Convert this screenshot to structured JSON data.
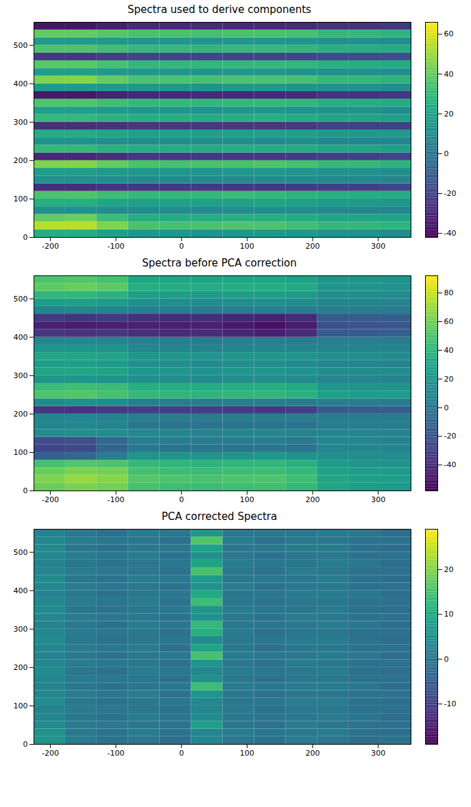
{
  "chart_data": [
    {
      "type": "heatmap",
      "title": "Spectra used to derive components",
      "xlim": [
        -225,
        350
      ],
      "ylim": [
        0,
        560
      ],
      "xticks": [
        -200,
        -100,
        0,
        100,
        200,
        300
      ],
      "yticks": [
        0,
        100,
        200,
        300,
        400,
        500
      ],
      "colorbar_range": [
        -42,
        66
      ],
      "colorbar_ticks": [
        -40,
        -20,
        0,
        20,
        40,
        60
      ],
      "x_edges": [
        -225,
        -177,
        -129,
        -81,
        -33,
        15,
        63,
        111,
        159,
        207,
        255,
        303,
        350
      ],
      "y_edges": [
        0,
        20,
        40,
        60,
        80,
        100,
        120,
        140,
        160,
        180,
        200,
        220,
        240,
        260,
        280,
        300,
        320,
        340,
        360,
        380,
        400,
        420,
        440,
        460,
        480,
        500,
        520,
        540,
        560
      ],
      "cells": [
        [
          25,
          25,
          20,
          15,
          15,
          14,
          15,
          16,
          15,
          12,
          12,
          10
        ],
        [
          55,
          55,
          45,
          35,
          34,
          35,
          36,
          35,
          33,
          30,
          30,
          28
        ],
        [
          40,
          42,
          32,
          25,
          24,
          25,
          26,
          25,
          24,
          22,
          21,
          20
        ],
        [
          12,
          12,
          11,
          10,
          10,
          9,
          10,
          10,
          10,
          8,
          8,
          7
        ],
        [
          25,
          25,
          22,
          20,
          20,
          19,
          20,
          21,
          20,
          17,
          16,
          15
        ],
        [
          35,
          36,
          32,
          30,
          29,
          30,
          31,
          30,
          28,
          26,
          25,
          24
        ],
        [
          -28,
          -28,
          -26,
          -25,
          -25,
          -24,
          -25,
          -25,
          -24,
          -22,
          -22,
          -20
        ],
        [
          12,
          12,
          11,
          10,
          10,
          10,
          9,
          10,
          10,
          8,
          8,
          7
        ],
        [
          18,
          18,
          16,
          15,
          15,
          14,
          15,
          15,
          14,
          12,
          12,
          11
        ],
        [
          45,
          46,
          40,
          35,
          34,
          35,
          35,
          36,
          34,
          30,
          30,
          28
        ],
        [
          -30,
          -30,
          -27,
          -25,
          -25,
          -24,
          -25,
          -25,
          -24,
          -22,
          -21,
          -20
        ],
        [
          30,
          30,
          27,
          25,
          25,
          24,
          25,
          25,
          24,
          21,
          21,
          20
        ],
        [
          12,
          12,
          11,
          10,
          10,
          10,
          10,
          9,
          10,
          8,
          8,
          7
        ],
        [
          24,
          24,
          22,
          20,
          20,
          19,
          20,
          20,
          19,
          17,
          17,
          16
        ],
        [
          -27,
          -27,
          -26,
          -25,
          -25,
          -24,
          -25,
          -25,
          -24,
          -22,
          -22,
          -21
        ],
        [
          30,
          30,
          27,
          25,
          25,
          24,
          25,
          26,
          24,
          21,
          21,
          20
        ],
        [
          18,
          18,
          16,
          15,
          15,
          14,
          15,
          15,
          14,
          12,
          12,
          11
        ],
        [
          36,
          36,
          33,
          30,
          30,
          29,
          30,
          30,
          29,
          26,
          25,
          24
        ],
        [
          -35,
          -35,
          -32,
          -30,
          -30,
          -29,
          -30,
          -30,
          -29,
          -26,
          -26,
          -25
        ],
        [
          17,
          17,
          16,
          15,
          15,
          14,
          15,
          15,
          14,
          12,
          12,
          11
        ],
        [
          45,
          46,
          40,
          35,
          35,
          34,
          35,
          35,
          34,
          30,
          30,
          28
        ],
        [
          18,
          18,
          16,
          15,
          15,
          14,
          15,
          15,
          14,
          12,
          12,
          11
        ],
        [
          38,
          38,
          34,
          30,
          30,
          29,
          30,
          30,
          29,
          26,
          25,
          24
        ],
        [
          -24,
          -24,
          -22,
          -20,
          -20,
          -19,
          -20,
          -20,
          -19,
          -17,
          -17,
          -16
        ],
        [
          36,
          36,
          33,
          30,
          30,
          29,
          30,
          30,
          29,
          26,
          25,
          24
        ],
        [
          17,
          17,
          16,
          15,
          15,
          14,
          15,
          15,
          14,
          12,
          12,
          11
        ],
        [
          40,
          40,
          37,
          35,
          35,
          34,
          35,
          35,
          34,
          30,
          30,
          28
        ],
        [
          -36,
          -36,
          -33,
          -30,
          -30,
          -29,
          -30,
          -30,
          -29,
          -26,
          -26,
          -25
        ]
      ]
    },
    {
      "type": "heatmap",
      "title": "Spectra before PCA correction",
      "xlim": [
        -225,
        350
      ],
      "ylim": [
        0,
        560
      ],
      "xticks": [
        -200,
        -100,
        0,
        100,
        200,
        300
      ],
      "yticks": [
        0,
        100,
        200,
        300,
        400,
        500
      ],
      "colorbar_range": [
        -58,
        92
      ],
      "colorbar_ticks": [
        -40,
        -20,
        0,
        20,
        40,
        60,
        80
      ],
      "x_edges": [
        -225,
        -177,
        -129,
        -81,
        -33,
        15,
        63,
        111,
        159,
        207,
        255,
        303,
        350
      ],
      "y_edges": [
        0,
        20,
        40,
        60,
        80,
        100,
        120,
        140,
        160,
        180,
        200,
        220,
        240,
        260,
        280,
        300,
        320,
        340,
        360,
        380,
        400,
        420,
        440,
        460,
        480,
        500,
        520,
        540,
        560
      ],
      "cells": [
        [
          58,
          62,
          60,
          48,
          45,
          44,
          45,
          46,
          42,
          30,
          25,
          24
        ],
        [
          63,
          68,
          65,
          52,
          50,
          49,
          50,
          50,
          46,
          30,
          26,
          25
        ],
        [
          58,
          62,
          60,
          48,
          45,
          44,
          45,
          45,
          42,
          28,
          25,
          24
        ],
        [
          48,
          52,
          50,
          42,
          40,
          39,
          40,
          40,
          37,
          24,
          20,
          19
        ],
        [
          -12,
          -8,
          5,
          20,
          20,
          19,
          20,
          21,
          18,
          16,
          15,
          14
        ],
        [
          -28,
          -25,
          -10,
          2,
          0,
          -1,
          0,
          1,
          -2,
          11,
          10,
          9
        ],
        [
          -22,
          -20,
          -8,
          6,
          5,
          4,
          5,
          5,
          3,
          11,
          10,
          9
        ],
        [
          14,
          16,
          15,
          11,
          10,
          9,
          10,
          10,
          9,
          10,
          10,
          9
        ],
        [
          10,
          11,
          9,
          1,
          0,
          -1,
          0,
          0,
          -1,
          5,
          5,
          4
        ],
        [
          10,
          11,
          9,
          6,
          5,
          4,
          5,
          5,
          4,
          5,
          5,
          4
        ],
        [
          -34,
          -36,
          -33,
          -30,
          -30,
          -31,
          -32,
          -34,
          -30,
          -16,
          -15,
          -14
        ],
        [
          14,
          16,
          14,
          6,
          5,
          4,
          5,
          5,
          4,
          5,
          5,
          4
        ],
        [
          50,
          52,
          48,
          42,
          40,
          39,
          40,
          40,
          37,
          26,
          25,
          24
        ],
        [
          44,
          46,
          44,
          36,
          35,
          34,
          35,
          35,
          33,
          21,
          20,
          19
        ],
        [
          20,
          21,
          19,
          16,
          15,
          14,
          15,
          15,
          14,
          10,
          10,
          9
        ],
        [
          30,
          31,
          29,
          21,
          20,
          19,
          20,
          20,
          19,
          15,
          15,
          14
        ],
        [
          25,
          26,
          24,
          16,
          15,
          14,
          15,
          15,
          14,
          10,
          10,
          9
        ],
        [
          30,
          31,
          29,
          21,
          20,
          19,
          20,
          20,
          19,
          15,
          15,
          14
        ],
        [
          20,
          21,
          19,
          11,
          10,
          9,
          10,
          10,
          9,
          10,
          10,
          9
        ],
        [
          10,
          11,
          9,
          6,
          5,
          4,
          5,
          5,
          4,
          5,
          5,
          4
        ],
        [
          -34,
          -36,
          -34,
          -38,
          -40,
          -39,
          -42,
          -45,
          -40,
          -16,
          -15,
          -14
        ],
        [
          -44,
          -46,
          -44,
          -44,
          -45,
          -44,
          -48,
          -52,
          -46,
          -21,
          -20,
          -19
        ],
        [
          -34,
          -36,
          -34,
          -38,
          -40,
          -39,
          -42,
          -44,
          -40,
          -16,
          -15,
          -14
        ],
        [
          10,
          11,
          9,
          6,
          5,
          4,
          5,
          5,
          4,
          5,
          5,
          4
        ],
        [
          25,
          26,
          24,
          16,
          15,
          14,
          15,
          15,
          14,
          10,
          10,
          9
        ],
        [
          40,
          41,
          38,
          26,
          25,
          24,
          25,
          25,
          23,
          15,
          15,
          14
        ],
        [
          55,
          58,
          54,
          36,
          35,
          34,
          35,
          35,
          33,
          20,
          20,
          19
        ],
        [
          50,
          52,
          48,
          31,
          30,
          29,
          30,
          30,
          28,
          20,
          20,
          19
        ]
      ]
    },
    {
      "type": "heatmap",
      "title": "PCA corrected Spectra",
      "xlim": [
        -225,
        350
      ],
      "ylim": [
        0,
        560
      ],
      "xticks": [
        -200,
        -100,
        0,
        100,
        200,
        300
      ],
      "yticks": [
        0,
        100,
        200,
        300,
        400,
        500
      ],
      "colorbar_range": [
        -19,
        29
      ],
      "colorbar_ticks": [
        -10,
        0,
        10,
        20
      ],
      "x_edges": [
        -225,
        -177,
        -129,
        -81,
        -33,
        15,
        63,
        111,
        159,
        207,
        255,
        303,
        350
      ],
      "y_edges": [
        0,
        20,
        40,
        60,
        80,
        100,
        120,
        140,
        160,
        180,
        200,
        220,
        240,
        260,
        280,
        300,
        320,
        340,
        360,
        380,
        400,
        420,
        440,
        460,
        480,
        500,
        520,
        540,
        560
      ],
      "cells": [
        [
          6,
          1,
          -1,
          0,
          -2,
          3,
          0,
          -1,
          1,
          0,
          -2,
          -1
        ],
        [
          5,
          0,
          -1,
          1,
          -1,
          3,
          1,
          0,
          0,
          1,
          -1,
          -2
        ],
        [
          4,
          1,
          0,
          0,
          -1,
          8,
          0,
          -1,
          1,
          0,
          -1,
          -1
        ],
        [
          3,
          0,
          -1,
          1,
          0,
          4,
          0,
          0,
          0,
          1,
          0,
          -2
        ],
        [
          2,
          1,
          0,
          0,
          -1,
          3,
          1,
          -1,
          0,
          0,
          -1,
          -1
        ],
        [
          4,
          0,
          -1,
          0,
          0,
          3,
          0,
          0,
          1,
          1,
          -1,
          -2
        ],
        [
          3,
          1,
          0,
          1,
          -1,
          6,
          0,
          -1,
          0,
          0,
          -1,
          -1
        ],
        [
          2,
          0,
          -1,
          0,
          0,
          14,
          1,
          0,
          1,
          1,
          0,
          -2
        ],
        [
          3,
          1,
          0,
          0,
          -1,
          5,
          0,
          -1,
          0,
          0,
          -1,
          -1
        ],
        [
          4,
          0,
          -1,
          1,
          0,
          3,
          1,
          0,
          0,
          1,
          -1,
          -2
        ],
        [
          3,
          1,
          0,
          0,
          -1,
          6,
          0,
          -1,
          1,
          0,
          -1,
          -1
        ],
        [
          2,
          0,
          -1,
          0,
          0,
          15,
          1,
          0,
          0,
          1,
          0,
          -2
        ],
        [
          3,
          1,
          0,
          1,
          -1,
          9,
          0,
          -1,
          0,
          0,
          -1,
          -1
        ],
        [
          4,
          0,
          -1,
          0,
          0,
          4,
          0,
          0,
          1,
          1,
          -1,
          -2
        ],
        [
          3,
          1,
          0,
          0,
          -1,
          11,
          1,
          -1,
          0,
          0,
          -1,
          -1
        ],
        [
          2,
          0,
          -1,
          1,
          0,
          13,
          0,
          0,
          0,
          1,
          0,
          -2
        ],
        [
          3,
          1,
          0,
          0,
          -1,
          5,
          0,
          -1,
          1,
          0,
          -1,
          -1
        ],
        [
          4,
          0,
          -1,
          0,
          0,
          6,
          1,
          0,
          0,
          1,
          -1,
          -2
        ],
        [
          3,
          1,
          0,
          1,
          -1,
          14,
          0,
          -1,
          0,
          0,
          -1,
          -1
        ],
        [
          2,
          0,
          -1,
          0,
          0,
          10,
          0,
          0,
          1,
          1,
          0,
          -2
        ],
        [
          3,
          1,
          0,
          0,
          -1,
          5,
          1,
          -1,
          0,
          0,
          -1,
          -1
        ],
        [
          4,
          0,
          -1,
          1,
          0,
          7,
          0,
          0,
          0,
          1,
          -1,
          -2
        ],
        [
          3,
          1,
          0,
          0,
          -1,
          15,
          0,
          -1,
          1,
          0,
          -1,
          -1
        ],
        [
          2,
          0,
          -1,
          0,
          0,
          9,
          1,
          0,
          0,
          1,
          0,
          -2
        ],
        [
          3,
          1,
          0,
          1,
          -1,
          5,
          0,
          -1,
          0,
          0,
          -1,
          -1
        ],
        [
          4,
          0,
          -1,
          0,
          0,
          8,
          0,
          0,
          1,
          1,
          -1,
          -2
        ],
        [
          3,
          1,
          0,
          0,
          -1,
          16,
          1,
          -1,
          0,
          0,
          -1,
          -1
        ],
        [
          2,
          0,
          -1,
          1,
          0,
          6,
          0,
          0,
          0,
          1,
          0,
          -2
        ]
      ]
    }
  ]
}
